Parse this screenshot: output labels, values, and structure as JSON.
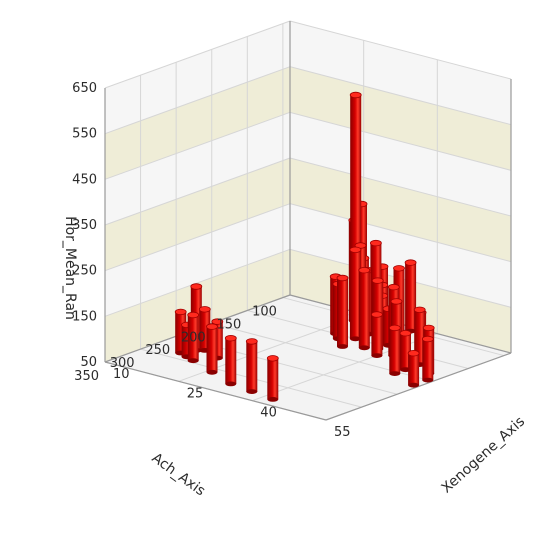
{
  "chart_data": {
    "type": "3d-bar",
    "z_axis": {
      "label": "Hor_Mean_Ran",
      "ticks": [
        "50",
        "150",
        "250",
        "350",
        "450",
        "550",
        "650"
      ],
      "range": [
        50,
        650
      ]
    },
    "x_axis": {
      "label": "Ach_Axis",
      "ticks": [
        "100",
        "150",
        "200",
        "250",
        "300",
        "350"
      ],
      "range": [
        90,
        350
      ]
    },
    "y_axis": {
      "label": "Xenogene_Axis",
      "ticks": [
        "10",
        "25",
        "40",
        "55"
      ],
      "range": [
        10,
        55
      ]
    },
    "background_bands": [
      "#efedd7",
      "#f6f6f6"
    ],
    "bar_color": "#d40000",
    "points": [
      {
        "x": 100,
        "y": 26,
        "z": 300
      },
      {
        "x": 115,
        "y": 27,
        "z": 550
      },
      {
        "x": 110,
        "y": 26,
        "z": 270
      },
      {
        "x": 122,
        "y": 29,
        "z": 230
      },
      {
        "x": 118,
        "y": 29,
        "z": 200
      },
      {
        "x": 128,
        "y": 33,
        "z": 250
      },
      {
        "x": 132,
        "y": 32,
        "z": 190
      },
      {
        "x": 126,
        "y": 34,
        "z": 160
      },
      {
        "x": 140,
        "y": 36,
        "z": 150
      },
      {
        "x": 150,
        "y": 28,
        "z": 175
      },
      {
        "x": 150,
        "y": 32,
        "z": 245
      },
      {
        "x": 160,
        "y": 30,
        "z": 170
      },
      {
        "x": 145,
        "y": 38,
        "z": 130
      },
      {
        "x": 160,
        "y": 38,
        "z": 200
      },
      {
        "x": 165,
        "y": 42,
        "z": 200
      },
      {
        "x": 175,
        "y": 44,
        "z": 180
      },
      {
        "x": 105,
        "y": 31,
        "z": 180
      },
      {
        "x": 100,
        "y": 36,
        "z": 200
      },
      {
        "x": 130,
        "y": 38,
        "z": 210
      },
      {
        "x": 170,
        "y": 48,
        "z": 170
      },
      {
        "x": 190,
        "y": 48,
        "z": 130
      },
      {
        "x": 200,
        "y": 54,
        "z": 140
      },
      {
        "x": 185,
        "y": 52,
        "z": 150
      },
      {
        "x": 175,
        "y": 40,
        "z": 140
      },
      {
        "x": 205,
        "y": 48,
        "z": 150
      },
      {
        "x": 220,
        "y": 54,
        "z": 120
      },
      {
        "x": 165,
        "y": 36,
        "z": 220
      },
      {
        "x": 175,
        "y": 33,
        "z": 200
      },
      {
        "x": 155,
        "y": 46,
        "z": 150
      },
      {
        "x": 265,
        "y": 18,
        "z": 140
      },
      {
        "x": 270,
        "y": 17,
        "z": 190
      },
      {
        "x": 285,
        "y": 16,
        "z": 140
      },
      {
        "x": 295,
        "y": 20,
        "z": 150
      },
      {
        "x": 290,
        "y": 18,
        "z": 120
      },
      {
        "x": 275,
        "y": 22,
        "z": 130
      },
      {
        "x": 310,
        "y": 26,
        "z": 150
      },
      {
        "x": 325,
        "y": 32,
        "z": 150
      },
      {
        "x": 330,
        "y": 37,
        "z": 160
      },
      {
        "x": 335,
        "y": 42,
        "z": 140
      }
    ]
  }
}
